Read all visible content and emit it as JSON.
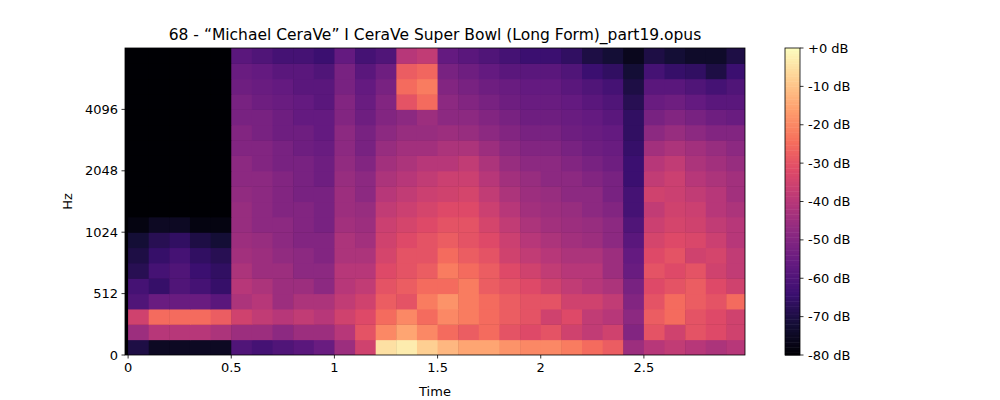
{
  "chart_data": {
    "type": "heatmap",
    "title": "68 - “Michael CeraVe” I CeraVe Super Bowl (Long Form)_part19.opus",
    "x_label": "Time",
    "y_label": "Hz",
    "xlim": [
      -0.015,
      2.99
    ],
    "xticks": [
      0,
      0.5,
      1,
      1.5,
      2,
      2.5
    ],
    "ylim": [
      0,
      8192
    ],
    "yticks": [
      0,
      512,
      1024,
      2048,
      4096
    ],
    "x_edges": [
      0,
      0.1,
      0.2,
      0.3,
      0.4,
      0.5,
      0.6,
      0.7,
      0.8,
      0.9,
      1,
      1.1,
      1.2,
      1.3,
      1.4,
      1.5,
      1.6,
      1.7,
      1.8,
      1.9,
      2,
      2.1,
      2.2,
      2.3,
      2.4,
      2.5,
      2.6,
      2.7,
      2.8,
      2.9,
      3
    ],
    "y_edges": [
      0,
      128,
      256,
      384,
      512,
      609,
      724,
      861,
      1024,
      1218,
      1448,
      1722,
      2048,
      2435,
      2896,
      3444,
      4096,
      4871,
      5793,
      6889,
      8192
    ],
    "cells": [
      [
        -70,
        -75,
        -75,
        -75,
        -75,
        -60,
        -62,
        -60,
        -58,
        -55,
        -45,
        -35,
        -5,
        -3,
        -8,
        -12,
        -15,
        -15,
        -18,
        -20,
        -20,
        -22,
        -25,
        -28,
        -45,
        -40,
        -38,
        -40,
        -42,
        -40
      ],
      [
        -45,
        -40,
        -40,
        -40,
        -42,
        -45,
        -45,
        -48,
        -45,
        -45,
        -40,
        -30,
        -20,
        -15,
        -20,
        -25,
        -28,
        -25,
        -30,
        -32,
        -30,
        -35,
        -38,
        -35,
        -50,
        -30,
        -35,
        -30,
        -32,
        -35
      ],
      [
        -35,
        -25,
        -25,
        -25,
        -28,
        -35,
        -38,
        -40,
        -38,
        -40,
        -35,
        -32,
        -25,
        -20,
        -25,
        -20,
        -22,
        -25,
        -28,
        -30,
        -35,
        -32,
        -38,
        -40,
        -48,
        -28,
        -25,
        -30,
        -32,
        -35
      ],
      [
        -60,
        -55,
        -55,
        -55,
        -58,
        -42,
        -40,
        -45,
        -42,
        -42,
        -38,
        -35,
        -28,
        -30,
        -22,
        -18,
        -22,
        -25,
        -28,
        -30,
        -30,
        -35,
        -35,
        -38,
        -50,
        -30,
        -25,
        -28,
        -30,
        -25
      ],
      [
        -62,
        -65,
        -60,
        -62,
        -65,
        -40,
        -42,
        -45,
        -45,
        -48,
        -40,
        -38,
        -30,
        -28,
        -25,
        -25,
        -22,
        -28,
        -30,
        -32,
        -35,
        -38,
        -40,
        -42,
        -52,
        -32,
        -30,
        -28,
        -32,
        -35
      ],
      [
        -68,
        -62,
        -60,
        -64,
        -66,
        -42,
        -45,
        -45,
        -48,
        -48,
        -40,
        -40,
        -32,
        -30,
        -28,
        -22,
        -25,
        -28,
        -32,
        -35,
        -38,
        -40,
        -40,
        -45,
        -55,
        -30,
        -32,
        -30,
        -35,
        -38
      ],
      [
        -70,
        -65,
        -62,
        -66,
        -68,
        -44,
        -45,
        -47,
        -48,
        -50,
        -42,
        -42,
        -34,
        -30,
        -30,
        -25,
        -28,
        -30,
        -35,
        -38,
        -40,
        -42,
        -42,
        -45,
        -56,
        -32,
        -30,
        -35,
        -34,
        -38
      ],
      [
        -72,
        -68,
        -66,
        -70,
        -72,
        -45,
        -46,
        -48,
        -50,
        -50,
        -42,
        -44,
        -35,
        -32,
        -30,
        -28,
        -30,
        -32,
        -36,
        -40,
        -42,
        -44,
        -45,
        -48,
        -58,
        -34,
        -32,
        -33,
        -36,
        -40
      ],
      [
        -78,
        -75,
        -75,
        -78,
        -78,
        -46,
        -48,
        -48,
        -50,
        -52,
        -44,
        -45,
        -36,
        -34,
        -32,
        -30,
        -30,
        -34,
        -38,
        -42,
        -44,
        -45,
        -46,
        -48,
        -60,
        -36,
        -34,
        -35,
        -38,
        -40
      ],
      [
        -80,
        -80,
        -80,
        -80,
        -80,
        -46,
        -48,
        -50,
        -50,
        -52,
        -45,
        -46,
        -38,
        -36,
        -34,
        -32,
        -32,
        -36,
        -40,
        -44,
        -45,
        -46,
        -48,
        -50,
        -62,
        -38,
        -35,
        -36,
        -40,
        -42
      ],
      [
        -80,
        -80,
        -80,
        -80,
        -80,
        -47,
        -48,
        -50,
        -52,
        -52,
        -45,
        -48,
        -40,
        -38,
        -36,
        -35,
        -34,
        -38,
        -42,
        -45,
        -46,
        -48,
        -48,
        -52,
        -62,
        -35,
        -36,
        -38,
        -40,
        -44
      ],
      [
        -80,
        -80,
        -80,
        -80,
        -80,
        -48,
        -48,
        -50,
        -52,
        -54,
        -46,
        -48,
        -42,
        -40,
        -38,
        -36,
        -36,
        -40,
        -44,
        -46,
        -48,
        -48,
        -50,
        -52,
        -64,
        -38,
        -36,
        -40,
        -42,
        -44
      ],
      [
        -80,
        -80,
        -80,
        -80,
        -80,
        -48,
        -50,
        -52,
        -52,
        -54,
        -47,
        -50,
        -44,
        -42,
        -40,
        -40,
        -38,
        -42,
        -46,
        -48,
        -48,
        -50,
        -52,
        -54,
        -64,
        -40,
        -38,
        -42,
        -44,
        -46
      ],
      [
        -80,
        -80,
        -80,
        -80,
        -80,
        -50,
        -50,
        -52,
        -54,
        -55,
        -48,
        -52,
        -46,
        -44,
        -44,
        -42,
        -42,
        -45,
        -48,
        -50,
        -50,
        -52,
        -54,
        -55,
        -65,
        -44,
        -42,
        -44,
        -46,
        -48
      ],
      [
        -80,
        -80,
        -80,
        -80,
        -80,
        -50,
        -52,
        -54,
        -54,
        -56,
        -48,
        -52,
        -48,
        -46,
        -46,
        -45,
        -46,
        -48,
        -50,
        -52,
        -52,
        -54,
        -55,
        -56,
        -66,
        -48,
        -46,
        -48,
        -50,
        -50
      ],
      [
        -80,
        -80,
        -80,
        -80,
        -80,
        -52,
        -52,
        -54,
        -56,
        -56,
        -50,
        -54,
        -50,
        -48,
        -45,
        -48,
        -48,
        -50,
        -52,
        -54,
        -54,
        -55,
        -56,
        -58,
        -66,
        -52,
        -50,
        -52,
        -54,
        -55
      ],
      [
        -80,
        -80,
        -80,
        -80,
        -80,
        -52,
        -54,
        -55,
        -56,
        -58,
        -50,
        -55,
        -50,
        -30,
        -25,
        -48,
        -50,
        -52,
        -54,
        -55,
        -55,
        -56,
        -58,
        -60,
        -68,
        -55,
        -54,
        -56,
        -58,
        -58
      ],
      [
        -80,
        -80,
        -80,
        -80,
        -80,
        -54,
        -55,
        -56,
        -58,
        -58,
        -52,
        -56,
        -52,
        -25,
        -22,
        -50,
        -52,
        -54,
        -55,
        -56,
        -56,
        -58,
        -60,
        -62,
        -70,
        -58,
        -58,
        -60,
        -62,
        -60
      ],
      [
        -80,
        -80,
        -80,
        -80,
        -80,
        -55,
        -56,
        -58,
        -58,
        -60,
        -52,
        -58,
        -54,
        -28,
        -26,
        -52,
        -54,
        -56,
        -58,
        -58,
        -58,
        -60,
        -64,
        -66,
        -72,
        -62,
        -65,
        -66,
        -70,
        -64
      ],
      [
        -80,
        -80,
        -80,
        -80,
        -80,
        -58,
        -60,
        -62,
        -62,
        -64,
        -56,
        -62,
        -60,
        -40,
        -38,
        -56,
        -58,
        -60,
        -62,
        -64,
        -64,
        -66,
        -70,
        -72,
        -76,
        -70,
        -72,
        -74,
        -74,
        -70
      ]
    ],
    "colorbar": {
      "range": [
        -80,
        0
      ],
      "ticks": [
        {
          "value": 0,
          "label": "+0 dB"
        },
        {
          "value": -10,
          "label": "-10 dB"
        },
        {
          "value": -20,
          "label": "-20 dB"
        },
        {
          "value": -30,
          "label": "-30 dB"
        },
        {
          "value": -40,
          "label": "-40 dB"
        },
        {
          "value": -50,
          "label": "-50 dB"
        },
        {
          "value": -60,
          "label": "-60 dB"
        },
        {
          "value": -70,
          "label": "-70 dB"
        },
        {
          "value": -80,
          "label": "-80 dB"
        }
      ]
    }
  }
}
